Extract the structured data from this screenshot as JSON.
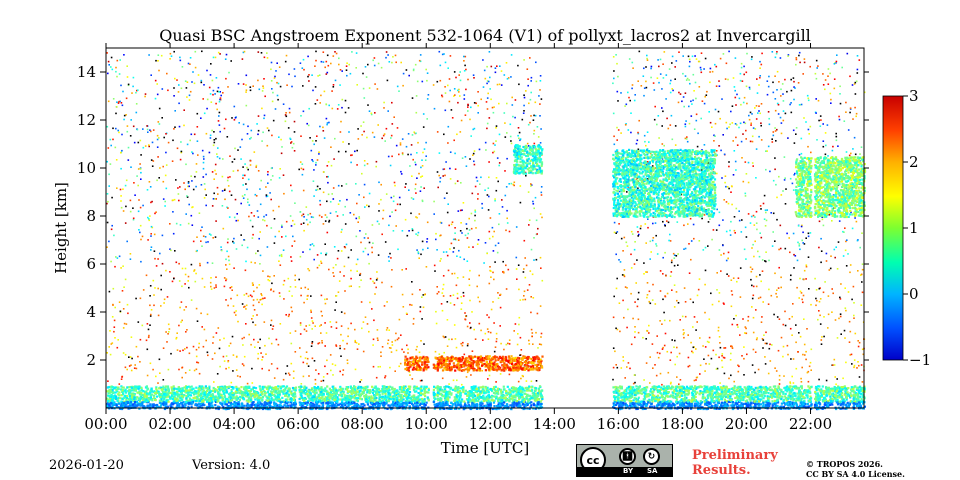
{
  "chart_data": {
    "type": "heatmap",
    "title": "Quasi BSC Angstroem Exponent 532-1064 (V1) of pollyxt_lacros2 at Invercargill",
    "xlabel": "Time [UTC]",
    "ylabel": "Height [km]",
    "x_range_hours": [
      0,
      23.67
    ],
    "ylim_km": [
      0,
      15
    ],
    "x_ticks": [
      {
        "value": 0,
        "label": "00:00"
      },
      {
        "value": 2,
        "label": "02:00"
      },
      {
        "value": 4,
        "label": "04:00"
      },
      {
        "value": 6,
        "label": "06:00"
      },
      {
        "value": 8,
        "label": "08:00"
      },
      {
        "value": 10,
        "label": "10:00"
      },
      {
        "value": 12,
        "label": "12:00"
      },
      {
        "value": 14,
        "label": "14:00"
      },
      {
        "value": 16,
        "label": "16:00"
      },
      {
        "value": 18,
        "label": "18:00"
      },
      {
        "value": 20,
        "label": "20:00"
      },
      {
        "value": 22,
        "label": "22:00"
      }
    ],
    "y_ticks": [
      {
        "value": 2,
        "label": "2"
      },
      {
        "value": 4,
        "label": "4"
      },
      {
        "value": 6,
        "label": "6"
      },
      {
        "value": 8,
        "label": "8"
      },
      {
        "value": 10,
        "label": "10"
      },
      {
        "value": 12,
        "label": "12"
      },
      {
        "value": 14,
        "label": "14"
      }
    ],
    "colorbar": {
      "min": -1,
      "max": 3,
      "colormap": "jet",
      "ticks": [
        {
          "value": -1,
          "label": "−1"
        },
        {
          "value": 0,
          "label": "0"
        },
        {
          "value": 1,
          "label": "1"
        },
        {
          "value": 2,
          "label": "2"
        },
        {
          "value": 3,
          "label": "3"
        }
      ]
    },
    "data_gaps_hours": [
      [
        5.9,
        6.0
      ],
      [
        10.05,
        10.2
      ],
      [
        13.6,
        15.8
      ],
      [
        22.0,
        22.1
      ]
    ],
    "layers": [
      {
        "name": "boundary-layer",
        "t_start": 0,
        "t_end": 23.67,
        "h_bottom": 0,
        "h_top": 0.95,
        "value": 0.8
      },
      {
        "name": "aerosol-layer-0930-1330",
        "t_start": 9.3,
        "t_end": 13.6,
        "h_bottom": 1.6,
        "h_top": 2.2,
        "value": 2.1
      },
      {
        "name": "cirrus-morning",
        "t_start": 12.7,
        "t_end": 13.6,
        "h_bottom": 9.8,
        "h_top": 11.0,
        "value": 0.7
      },
      {
        "name": "cirrus-evening",
        "t_start": 15.8,
        "t_end": 19.0,
        "h_bottom": 8.0,
        "h_top": 10.8,
        "value": 0.7
      },
      {
        "name": "cirrus-night",
        "t_start": 21.5,
        "t_end": 23.67,
        "h_bottom": 8.0,
        "h_top": 10.5,
        "value": 1.0
      }
    ]
  },
  "footer": {
    "date": "2026-01-20",
    "version": "Version: 4.0",
    "license_badge": {
      "cc": "cc",
      "by": "BY",
      "sa": "SA"
    },
    "preliminary": [
      "Preliminary",
      "Results."
    ],
    "copyright": [
      "© TROPOS 2026.",
      "CC BY SA 4.0 License."
    ]
  }
}
